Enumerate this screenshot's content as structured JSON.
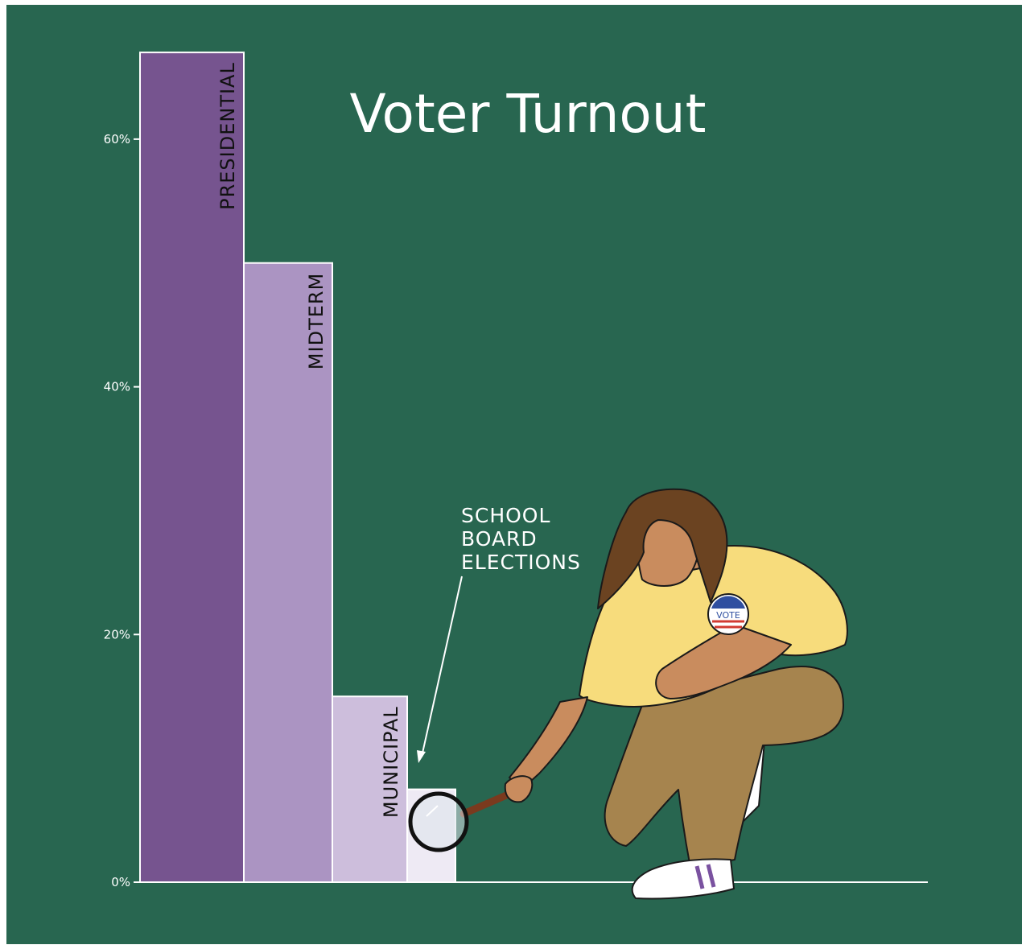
{
  "chart_data": {
    "type": "bar",
    "title": "Voter Turnout",
    "xlabel": "",
    "ylabel": "",
    "ylim": [
      0,
      70
    ],
    "y_ticks": [
      0,
      20,
      40,
      60
    ],
    "y_tick_labels": [
      "0%",
      "20%",
      "40%",
      "60%"
    ],
    "categories": [
      "PRESIDENTIAL",
      "MIDTERM",
      "MUNICIPAL",
      ""
    ],
    "values": [
      67,
      50,
      15,
      7.5
    ],
    "colors": [
      "#76548f",
      "#ab94c2",
      "#cdbedc",
      "#eeeaf4"
    ],
    "grid": false,
    "annotation": {
      "lines": [
        "SCHOOL",
        "BOARD",
        "ELECTIONS"
      ],
      "target_index": 3
    }
  },
  "colors": {
    "background": "#286650",
    "axis": "#ffffff",
    "shirt": "#f7dc7c",
    "pants": "#a6844e",
    "skin": "#c98c5e",
    "hair": "#6b4321"
  },
  "badge": {
    "text": "VOTE"
  },
  "icons": [
    "magnifying-glass-icon",
    "vote-badge-icon"
  ]
}
